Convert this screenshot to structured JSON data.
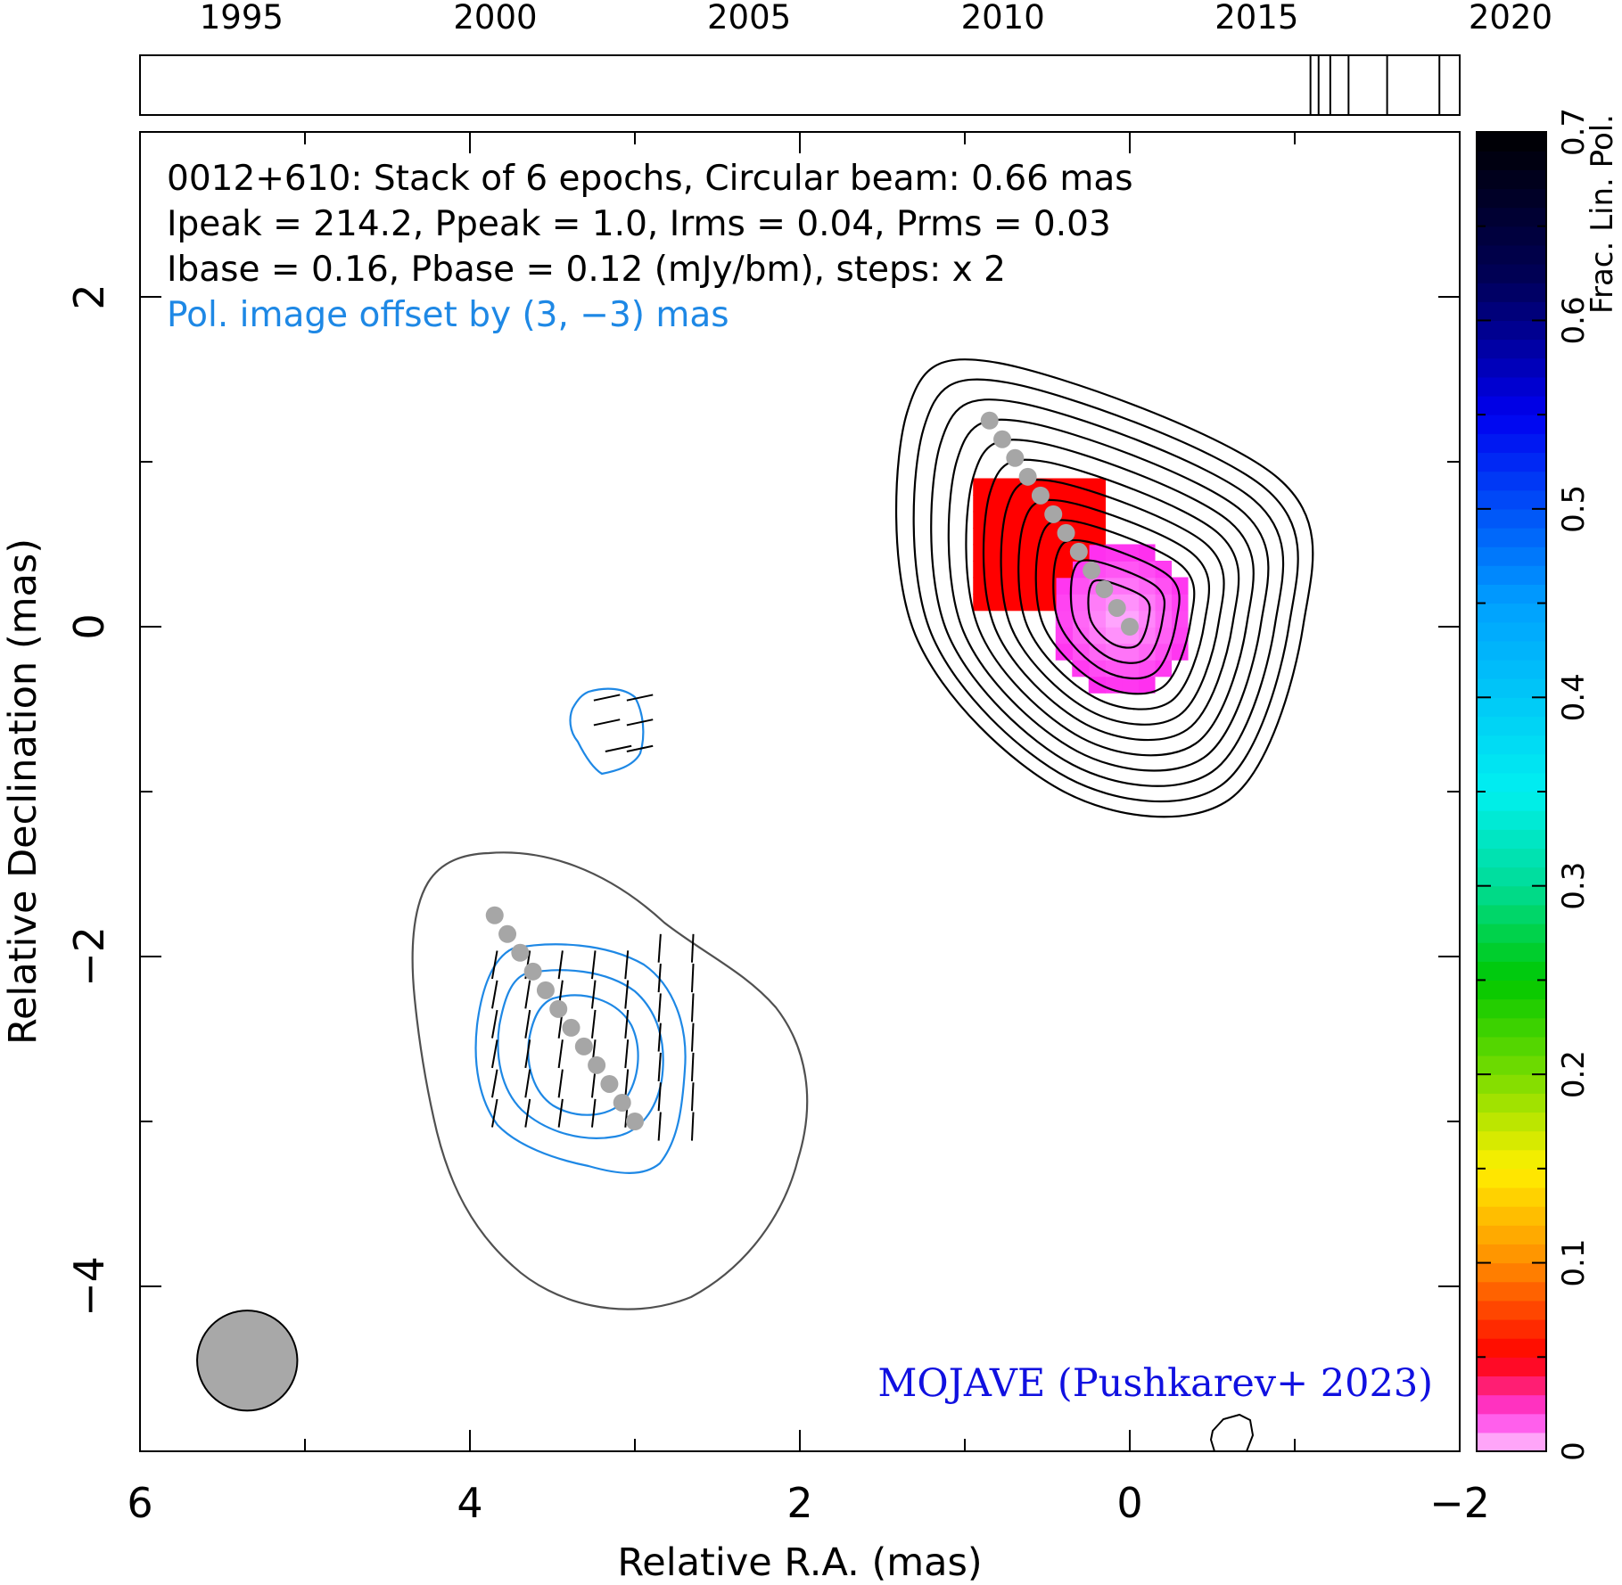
{
  "chart_data": {
    "type": "contour_map",
    "source": "0012+610",
    "header": {
      "line1": "0012+610: Stack of 6 epochs, Circular beam: 0.66 mas",
      "line2": "Ipeak = 214.2, Ppeak = 1.0, Irms = 0.04, Prms = 0.03",
      "line3": "Ibase = 0.16, Pbase = 0.12 (mJy/bm), steps: x 2",
      "line4": "Pol. image offset by (3, −3) mas"
    },
    "xlabel": "Relative R.A. (mas)",
    "ylabel": "Relative Declination (mas)",
    "xlim": [
      6,
      -2
    ],
    "ylim": [
      -5,
      3
    ],
    "x_ticks": [
      6,
      4,
      2,
      0,
      -2
    ],
    "y_ticks": [
      2,
      0,
      -2,
      -4
    ],
    "x_tick_labels": [
      "6",
      "4",
      "2",
      "0",
      "−2"
    ],
    "y_tick_labels": [
      "2",
      "0",
      "−2",
      "−4"
    ],
    "x_minor_step": 1,
    "y_minor_step": 1,
    "epoch_axis": {
      "range": [
        1993,
        2019
      ],
      "tick_labels": [
        "1995",
        "2000",
        "2005",
        "2010",
        "2015",
        "2020"
      ],
      "tick_years": [
        1995,
        2000,
        2005,
        2010,
        2015,
        2020
      ],
      "epochs": [
        2016.06,
        2016.22,
        2016.45,
        2016.81,
        2017.57,
        2018.6
      ]
    },
    "colorbar": {
      "label": "Frac. Lin. Pol.",
      "range": [
        0,
        0.7
      ],
      "tick_values": [
        0,
        0.1,
        0.2,
        0.3,
        0.4,
        0.5,
        0.6,
        0.7
      ],
      "tick_labels": [
        "0",
        "0.1",
        "0.2",
        "0.3",
        "0.4",
        "0.5",
        "0.6",
        "0.7"
      ]
    },
    "beam": {
      "ra": 5.35,
      "dec": -4.45,
      "diameter_mas": 0.66
    },
    "jet_ridge": {
      "start": [
        0.85,
        1.25
      ],
      "end": [
        0.0,
        0.0
      ],
      "points": 12
    },
    "annotation": "MOJAVE (Pushkarev+ 2023)",
    "colors": {
      "total_intensity_contours": "#000000",
      "pol_contours": "#1e88e5",
      "pol_lowest_contour": "#505050",
      "ridge": "#a6a6a6",
      "beam": "#a8a8a8",
      "annotation": "#1010e0",
      "pol_label": "#1e88e5"
    }
  }
}
